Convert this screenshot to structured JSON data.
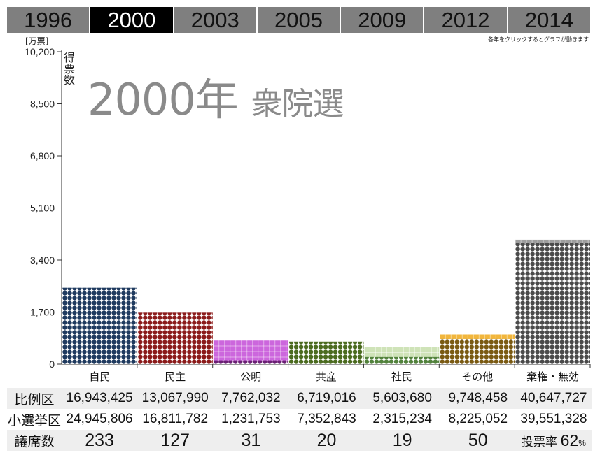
{
  "years": [
    "1996",
    "2000",
    "2003",
    "2005",
    "2009",
    "2012",
    "2014"
  ],
  "active_year": "2000",
  "hint": "各年をクリックするとグラフが動きます",
  "unit": "[万票]",
  "ylabel": "得票数",
  "title_year": "2000年",
  "title_name": "衆院選",
  "chart_data": {
    "type": "bar",
    "title": "2000年 衆院選",
    "xlabel": "",
    "ylabel": "得票数",
    "unit": "[万票]",
    "ylim": [
      0,
      10200
    ],
    "yticks": [
      "0",
      "1,700",
      "3,400",
      "5,100",
      "6,800",
      "8,500",
      "10,200"
    ],
    "categories": [
      "自民",
      "民主",
      "公明",
      "共産",
      "社民",
      "その他",
      "棄権・無効"
    ],
    "series": [
      {
        "name": "比例区",
        "values": [
          16943425,
          13067990,
          7762032,
          6719016,
          5603680,
          9748458,
          40647727
        ]
      },
      {
        "name": "小選挙区",
        "values": [
          24945806,
          16811782,
          1231753,
          7352843,
          2315234,
          8225052,
          39551328
        ]
      }
    ],
    "party_colors": [
      "#3a78c3",
      "#f07060",
      "#cc66dd",
      "#8dc63f",
      "#cfe3b8",
      "#f2b63c",
      "#9e9e9e"
    ],
    "district_colors": [
      "#1f3a5f",
      "#8b1a1a",
      "#6b1f75",
      "#4b6b1f",
      "#52823c",
      "#7a5a12",
      "#4a4a4a"
    ]
  },
  "table": {
    "row_labels": [
      "比例区",
      "小選挙区",
      "議席数"
    ],
    "proportional": [
      "16,943,425",
      "13,067,990",
      "7,762,032",
      "6,719,016",
      "5,603,680",
      "9,748,458",
      "40,647,727"
    ],
    "single_seat": [
      "24,945,806",
      "16,811,782",
      "1,231,753",
      "7,352,843",
      "2,315,234",
      "8,225,052",
      "39,551,328"
    ],
    "seats": [
      "233",
      "127",
      "31",
      "20",
      "19",
      "50"
    ],
    "turnout_label": "投票率",
    "turnout_value": "62",
    "turnout_unit": "%"
  }
}
